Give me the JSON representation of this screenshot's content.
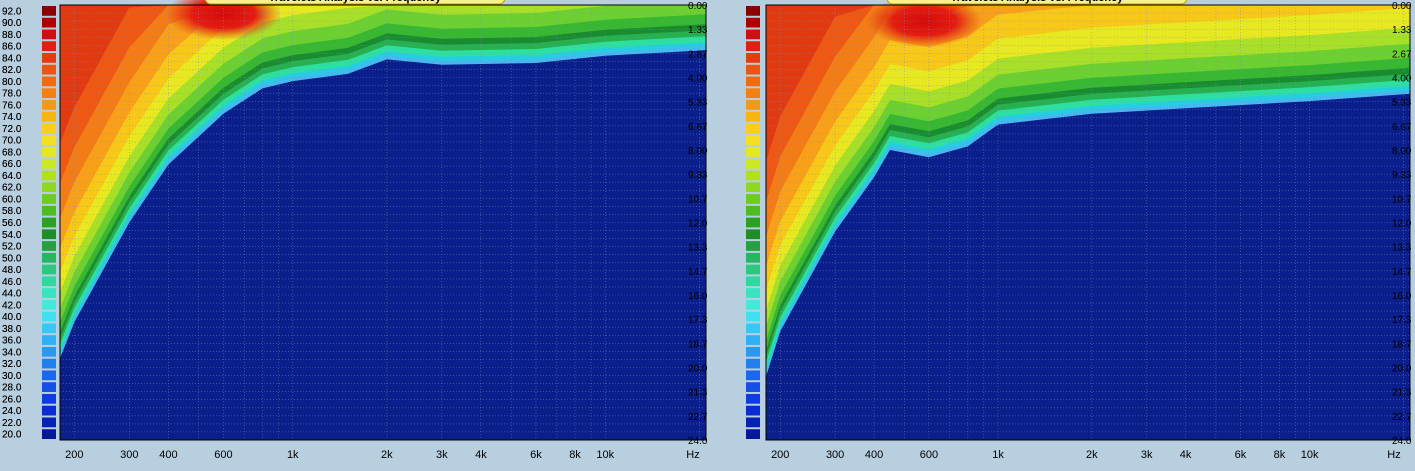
{
  "chart_data": [
    {
      "type": "heatmap",
      "title": "Travelets Analysis vs. Frequency",
      "xlabel": "Hz",
      "ylabel": "",
      "x_scale": "log",
      "xlim": [
        180,
        21000
      ],
      "x_ticks": [
        {
          "label": "200",
          "value": 200
        },
        {
          "label": "300",
          "value": 300
        },
        {
          "label": "400",
          "value": 400
        },
        {
          "label": "600",
          "value": 600
        },
        {
          "label": "1k",
          "value": 1000
        },
        {
          "label": "2k",
          "value": 2000
        },
        {
          "label": "3k",
          "value": 3000
        },
        {
          "label": "4k",
          "value": 4000
        },
        {
          "label": "6k",
          "value": 6000
        },
        {
          "label": "8k",
          "value": 8000
        },
        {
          "label": "10k",
          "value": 10000
        }
      ],
      "ylim": [
        0,
        24
      ],
      "y_ticks": [
        "0.00",
        "1.33",
        "2.67",
        "4.00",
        "5.33",
        "6.67",
        "8.00",
        "9.33",
        "10.7",
        "12.0",
        "13.3",
        "14.7",
        "16.0",
        "17.3",
        "18.7",
        "20.0",
        "21.3",
        "22.7",
        "24.0"
      ],
      "color_scale": {
        "labels": [
          "92.0",
          "90.0",
          "88.0",
          "86.0",
          "84.0",
          "82.0",
          "80.0",
          "78.0",
          "76.0",
          "74.0",
          "72.0",
          "70.0",
          "68.0",
          "66.0",
          "64.0",
          "62.0",
          "60.0",
          "58.0",
          "56.0",
          "54.0",
          "52.0",
          "50.0",
          "48.0",
          "46.0",
          "44.0",
          "42.0",
          "40.0",
          "38.0",
          "36.0",
          "34.0",
          "32.0",
          "30.0",
          "28.0",
          "26.0",
          "24.0",
          "22.0",
          "20.0"
        ],
        "min": 20,
        "max": 92
      },
      "cutoff_profile": [
        {
          "freq": 180,
          "y": 19.5
        },
        {
          "freq": 200,
          "y": 17.5
        },
        {
          "freq": 300,
          "y": 12.0
        },
        {
          "freq": 400,
          "y": 8.8
        },
        {
          "freq": 600,
          "y": 6.0
        },
        {
          "freq": 800,
          "y": 4.6
        },
        {
          "freq": 1000,
          "y": 4.2
        },
        {
          "freq": 1500,
          "y": 3.8
        },
        {
          "freq": 2000,
          "y": 3.0
        },
        {
          "freq": 3000,
          "y": 3.3
        },
        {
          "freq": 6000,
          "y": 3.2
        },
        {
          "freq": 10000,
          "y": 2.8
        },
        {
          "freq": 21000,
          "y": 2.5
        }
      ],
      "hotspot": {
        "freq": 600,
        "y": 0.5,
        "level": 92
      }
    },
    {
      "type": "heatmap",
      "title": "Travelets Analysis vs. Frequency",
      "xlabel": "Hz",
      "ylabel": "",
      "x_scale": "log",
      "xlim": [
        180,
        21000
      ],
      "x_ticks": [
        {
          "label": "200",
          "value": 200
        },
        {
          "label": "300",
          "value": 300
        },
        {
          "label": "400",
          "value": 400
        },
        {
          "label": "600",
          "value": 600
        },
        {
          "label": "1k",
          "value": 1000
        },
        {
          "label": "2k",
          "value": 2000
        },
        {
          "label": "3k",
          "value": 3000
        },
        {
          "label": "4k",
          "value": 4000
        },
        {
          "label": "6k",
          "value": 6000
        },
        {
          "label": "8k",
          "value": 8000
        },
        {
          "label": "10k",
          "value": 10000
        }
      ],
      "ylim": [
        0,
        24
      ],
      "y_ticks": [
        "0.00",
        "1.33",
        "2.67",
        "4.00",
        "5.33",
        "6.67",
        "8.00",
        "9.33",
        "10.7",
        "12.0",
        "13.3",
        "14.7",
        "16.0",
        "17.3",
        "18.7",
        "20.0",
        "21.3",
        "22.7",
        "24.0"
      ],
      "color_scale": {
        "labels": [
          "92.0",
          "90.0",
          "88.0",
          "86.0",
          "84.0",
          "82.0",
          "80.0",
          "78.0",
          "76.0",
          "74.0",
          "72.0",
          "70.0",
          "68.0",
          "66.0",
          "64.0",
          "62.0",
          "60.0",
          "58.0",
          "56.0",
          "54.0",
          "52.0",
          "50.0",
          "48.0",
          "46.0",
          "44.0",
          "42.0",
          "40.0",
          "38.0",
          "36.0",
          "34.0",
          "32.0",
          "30.0",
          "28.0",
          "26.0",
          "24.0",
          "22.0",
          "20.0"
        ],
        "min": 20,
        "max": 92
      },
      "cutoff_profile": [
        {
          "freq": 180,
          "y": 20.5
        },
        {
          "freq": 200,
          "y": 18.0
        },
        {
          "freq": 300,
          "y": 12.5
        },
        {
          "freq": 400,
          "y": 9.5
        },
        {
          "freq": 450,
          "y": 8.0
        },
        {
          "freq": 600,
          "y": 8.4
        },
        {
          "freq": 800,
          "y": 7.8
        },
        {
          "freq": 1000,
          "y": 6.6
        },
        {
          "freq": 2000,
          "y": 6.0
        },
        {
          "freq": 4000,
          "y": 5.7
        },
        {
          "freq": 10000,
          "y": 5.3
        },
        {
          "freq": 21000,
          "y": 4.9
        }
      ],
      "hotspot": {
        "freq": 580,
        "y": 0.9,
        "level": 92
      }
    }
  ]
}
